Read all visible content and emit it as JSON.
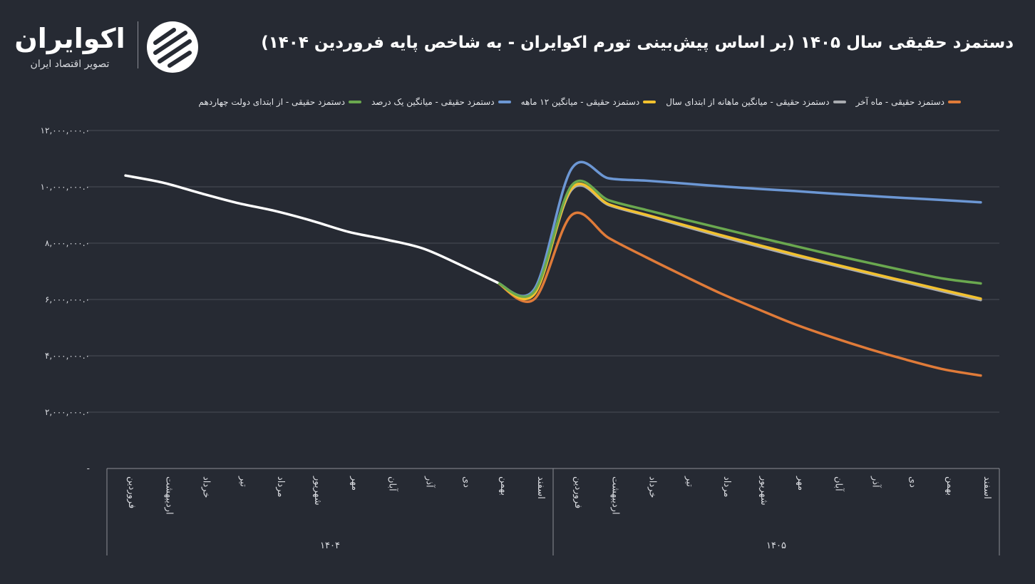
{
  "title": "دستمزد حقیقی سال ۱۴۰۵ (بر اساس پیش‌بینی تورم اکوایران - به شاخص پایه فروردین ۱۴۰۴)",
  "logo": {
    "name": "اکوایران",
    "subtitle": "تصویر اقتصاد ایران"
  },
  "chart_data": {
    "type": "line",
    "title": "دستمزد حقیقی سال ۱۴۰۵ (بر اساس پیش‌بینی تورم اکوایران - به شاخص پایه فروردین ۱۴۰۴)",
    "ylim": [
      0,
      12000000
    ],
    "yticks": [
      {
        "value": 0,
        "label": "-"
      },
      {
        "value": 2000000,
        "label": "۲,۰۰۰,۰۰۰.۰"
      },
      {
        "value": 4000000,
        "label": "۴,۰۰۰,۰۰۰.۰"
      },
      {
        "value": 6000000,
        "label": "۶,۰۰۰,۰۰۰.۰"
      },
      {
        "value": 8000000,
        "label": "۸,۰۰۰,۰۰۰.۰"
      },
      {
        "value": 10000000,
        "label": "۱۰,۰۰۰,۰۰۰.۰"
      },
      {
        "value": 12000000,
        "label": "۱۲,۰۰۰,۰۰۰.۰"
      }
    ],
    "grid": true,
    "legend_position": "top",
    "categories": [
      "فروردین",
      "اردیبهشت",
      "خرداد",
      "تیر",
      "مرداد",
      "شهریور",
      "مهر",
      "آبان",
      "آذر",
      "دی",
      "بهمن",
      "اسفند",
      "فروردین",
      "اردیبهشت",
      "خرداد",
      "تیر",
      "مرداد",
      "شهریور",
      "مهر",
      "آبان",
      "آذر",
      "دی",
      "بهمن",
      "اسفند"
    ],
    "groups": [
      {
        "label": "۱۴۰۴",
        "start": 0,
        "end": 11
      },
      {
        "label": "۱۴۰۵",
        "start": 12,
        "end": 23
      }
    ],
    "series": [
      {
        "name": "1404",
        "color": "#ffffff",
        "in_legend": false,
        "values": [
          10400000,
          10150000,
          9780000,
          9430000,
          9150000,
          8800000,
          8400000,
          8130000,
          7810000,
          7230000,
          6600000,
          null,
          null,
          null,
          null,
          null,
          null,
          null,
          null,
          null,
          null,
          null,
          null,
          null
        ]
      },
      {
        "name": "دستمزد حقیقی - ماه آخر",
        "color": "#e07b39",
        "in_legend": true,
        "values": [
          null,
          null,
          null,
          null,
          null,
          null,
          null,
          null,
          null,
          null,
          6600000,
          6020000,
          9000000,
          8180000,
          7500000,
          6850000,
          6220000,
          5660000,
          5120000,
          4660000,
          4240000,
          3860000,
          3520000,
          3300000
        ]
      },
      {
        "name": "دستمزد حقیقی - میانگین ماهانه از ابتدای سال",
        "color": "#a9abb0",
        "in_legend": true,
        "values": [
          null,
          null,
          null,
          null,
          null,
          null,
          null,
          null,
          null,
          null,
          6600000,
          6250000,
          9900000,
          9350000,
          8980000,
          8610000,
          8240000,
          7890000,
          7550000,
          7230000,
          6910000,
          6600000,
          6280000,
          5980000
        ]
      },
      {
        "name": "دستمزد حقیقی - میانگین ۱۲ ماهه",
        "color": "#f2c12e",
        "in_legend": true,
        "values": [
          null,
          null,
          null,
          null,
          null,
          null,
          null,
          null,
          null,
          null,
          6600000,
          6200000,
          9950000,
          9380000,
          9010000,
          8650000,
          8290000,
          7940000,
          7600000,
          7270000,
          6950000,
          6640000,
          6330000,
          6030000
        ]
      },
      {
        "name": "دستمزد حقیقی - میانگین یک درصد",
        "color": "#6c97d4",
        "in_legend": true,
        "values": [
          null,
          null,
          null,
          null,
          null,
          null,
          null,
          null,
          null,
          null,
          6600000,
          6380000,
          10650000,
          10300000,
          10220000,
          10120000,
          10020000,
          9930000,
          9850000,
          9760000,
          9680000,
          9600000,
          9530000,
          9450000
        ]
      },
      {
        "name": "دستمزد حقیقی - از ابتدای دولت چهاردهم",
        "color": "#6aa84f",
        "in_legend": true,
        "values": [
          null,
          null,
          null,
          null,
          null,
          null,
          null,
          null,
          null,
          null,
          6600000,
          6300000,
          10050000,
          9520000,
          9180000,
          8850000,
          8530000,
          8210000,
          7900000,
          7590000,
          7300000,
          7010000,
          6740000,
          6570000
        ]
      }
    ]
  }
}
